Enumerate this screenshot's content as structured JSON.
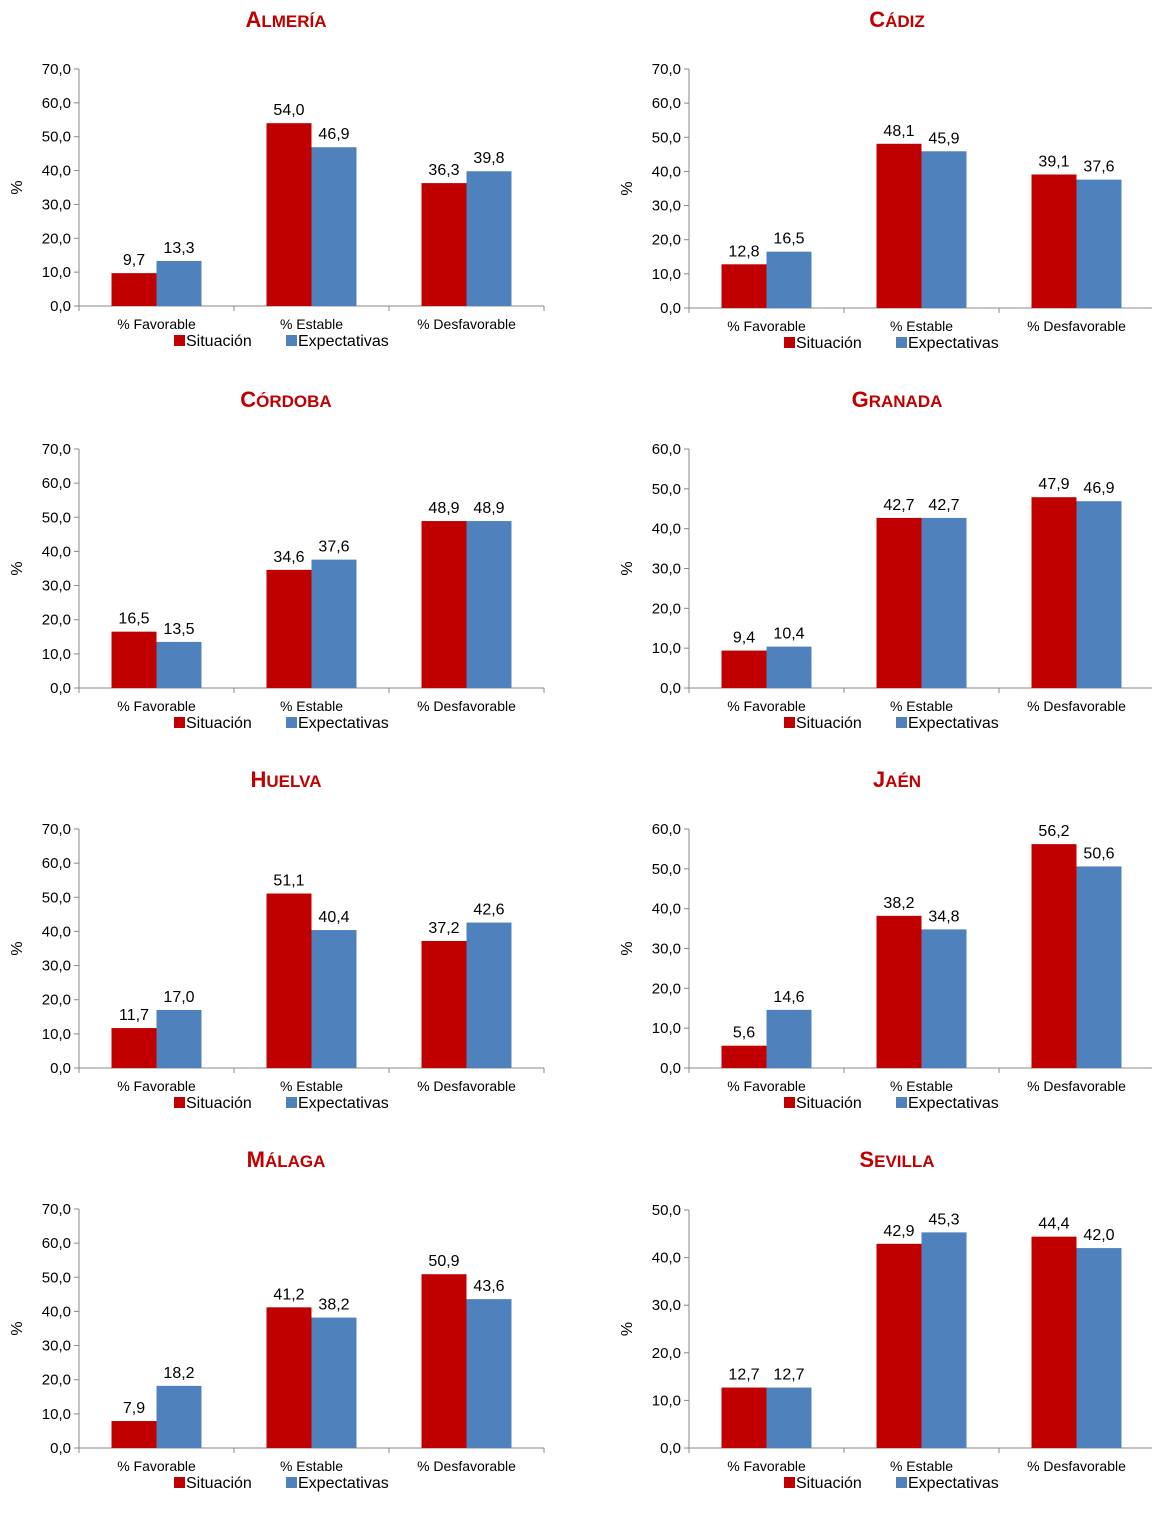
{
  "colors": {
    "situacion": "#c00000",
    "expectativas": "#4f81bd",
    "title": "#c00000"
  },
  "charts": [
    {
      "title": "ALMERÍA",
      "ylabel": "%",
      "yticks": [
        "0,0",
        "10,0",
        "20,0",
        "30,0",
        "40,0",
        "50,0",
        "60,0",
        "70,0"
      ],
      "value_labels": [
        [
          "9,7",
          "54,0",
          "36,3"
        ],
        [
          "13,3",
          "46,9",
          "39,8"
        ]
      ]
    },
    {
      "title": "CÁDIZ",
      "ylabel": "%",
      "yticks": [
        "0,0",
        "10,0",
        "20,0",
        "30,0",
        "40,0",
        "50,0",
        "60,0",
        "70,0"
      ],
      "value_labels": [
        [
          "12,8",
          "48,1",
          "39,1"
        ],
        [
          "16,5",
          "45,9",
          "37,6"
        ]
      ]
    },
    {
      "title": "CÓRDOBA",
      "ylabel": "%",
      "yticks": [
        "0,0",
        "10,0",
        "20,0",
        "30,0",
        "40,0",
        "50,0",
        "60,0",
        "70,0"
      ],
      "value_labels": [
        [
          "16,5",
          "34,6",
          "48,9"
        ],
        [
          "13,5",
          "37,6",
          "48,9"
        ]
      ]
    },
    {
      "title": "GRANADA",
      "ylabel": "%",
      "yticks": [
        "0,0",
        "10,0",
        "20,0",
        "30,0",
        "40,0",
        "50,0",
        "60,0"
      ],
      "value_labels": [
        [
          "9,4",
          "42,7",
          "47,9"
        ],
        [
          "10,4",
          "42,7",
          "46,9"
        ]
      ]
    },
    {
      "title": "HUELVA",
      "ylabel": "%",
      "yticks": [
        "0,0",
        "10,0",
        "20,0",
        "30,0",
        "40,0",
        "50,0",
        "60,0",
        "70,0"
      ],
      "value_labels": [
        [
          "11,7",
          "51,1",
          "37,2"
        ],
        [
          "17,0",
          "40,4",
          "42,6"
        ]
      ]
    },
    {
      "title": "JAÉN",
      "ylabel": "%",
      "yticks": [
        "0,0",
        "10,0",
        "20,0",
        "30,0",
        "40,0",
        "50,0",
        "60,0"
      ],
      "value_labels": [
        [
          "5,6",
          "38,2",
          "56,2"
        ],
        [
          "14,6",
          "34,8",
          "50,6"
        ]
      ]
    },
    {
      "title": "MÁLAGA",
      "ylabel": "%",
      "yticks": [
        "0,0",
        "10,0",
        "20,0",
        "30,0",
        "40,0",
        "50,0",
        "60,0",
        "70,0"
      ],
      "value_labels": [
        [
          "7,9",
          "41,2",
          "50,9"
        ],
        [
          "18,2",
          "38,2",
          "43,6"
        ]
      ]
    },
    {
      "title": "SEVILLA",
      "ylabel": "%",
      "yticks": [
        "0,0",
        "10,0",
        "20,0",
        "30,0",
        "40,0",
        "50,0"
      ],
      "value_labels": [
        [
          "12,7",
          "42,9",
          "44,4"
        ],
        [
          "12,7",
          "45,3",
          "42,0"
        ]
      ]
    }
  ],
  "chart_data": [
    {
      "type": "bar",
      "title": "ALMERÍA",
      "ylabel": "%",
      "ylim": [
        0,
        70
      ],
      "grid": false,
      "legend": "bottom",
      "categories": [
        "% Favorable",
        "% Estable",
        "% Desfavorable"
      ],
      "series": [
        {
          "name": "Situación",
          "values": [
            9.7,
            54.0,
            36.3
          ]
        },
        {
          "name": "Expectativas",
          "values": [
            13.3,
            46.9,
            39.8
          ]
        }
      ]
    },
    {
      "type": "bar",
      "title": "CÁDIZ",
      "ylabel": "%",
      "ylim": [
        0,
        70
      ],
      "grid": false,
      "legend": "bottom",
      "categories": [
        "% Favorable",
        "% Estable",
        "% Desfavorable"
      ],
      "series": [
        {
          "name": "Situación",
          "values": [
            12.8,
            48.1,
            39.1
          ]
        },
        {
          "name": "Expectativas",
          "values": [
            16.5,
            45.9,
            37.6
          ]
        }
      ]
    },
    {
      "type": "bar",
      "title": "CÓRDOBA",
      "ylabel": "%",
      "ylim": [
        0,
        70
      ],
      "grid": false,
      "legend": "bottom",
      "categories": [
        "% Favorable",
        "% Estable",
        "% Desfavorable"
      ],
      "series": [
        {
          "name": "Situación",
          "values": [
            16.5,
            34.6,
            48.9
          ]
        },
        {
          "name": "Expectativas",
          "values": [
            13.5,
            37.6,
            48.9
          ]
        }
      ]
    },
    {
      "type": "bar",
      "title": "GRANADA",
      "ylabel": "%",
      "ylim": [
        0,
        60
      ],
      "grid": false,
      "legend": "bottom",
      "categories": [
        "% Favorable",
        "% Estable",
        "% Desfavorable"
      ],
      "series": [
        {
          "name": "Situación",
          "values": [
            9.4,
            42.7,
            47.9
          ]
        },
        {
          "name": "Expectativas",
          "values": [
            10.4,
            42.7,
            46.9
          ]
        }
      ]
    },
    {
      "type": "bar",
      "title": "HUELVA",
      "ylabel": "%",
      "ylim": [
        0,
        70
      ],
      "grid": false,
      "legend": "bottom",
      "categories": [
        "% Favorable",
        "% Estable",
        "% Desfavorable"
      ],
      "series": [
        {
          "name": "Situación",
          "values": [
            11.7,
            51.1,
            37.2
          ]
        },
        {
          "name": "Expectativas",
          "values": [
            17.0,
            40.4,
            42.6
          ]
        }
      ]
    },
    {
      "type": "bar",
      "title": "JAÉN",
      "ylabel": "%",
      "ylim": [
        0,
        60
      ],
      "grid": false,
      "legend": "bottom",
      "categories": [
        "% Favorable",
        "% Estable",
        "% Desfavorable"
      ],
      "series": [
        {
          "name": "Situación",
          "values": [
            5.6,
            38.2,
            56.2
          ]
        },
        {
          "name": "Expectativas",
          "values": [
            14.6,
            34.8,
            50.6
          ]
        }
      ]
    },
    {
      "type": "bar",
      "title": "MÁLAGA",
      "ylabel": "%",
      "ylim": [
        0,
        70
      ],
      "grid": false,
      "legend": "bottom",
      "categories": [
        "% Favorable",
        "% Estable",
        "% Desfavorable"
      ],
      "series": [
        {
          "name": "Situación",
          "values": [
            7.9,
            41.2,
            50.9
          ]
        },
        {
          "name": "Expectativas",
          "values": [
            18.2,
            38.2,
            43.6
          ]
        }
      ]
    },
    {
      "type": "bar",
      "title": "SEVILLA",
      "ylabel": "%",
      "ylim": [
        0,
        50
      ],
      "grid": false,
      "legend": "bottom",
      "categories": [
        "% Favorable",
        "% Estable",
        "% Desfavorable"
      ],
      "series": [
        {
          "name": "Situación",
          "values": [
            12.7,
            42.9,
            44.4
          ]
        },
        {
          "name": "Expectativas",
          "values": [
            12.7,
            45.3,
            42.0
          ]
        }
      ]
    }
  ]
}
